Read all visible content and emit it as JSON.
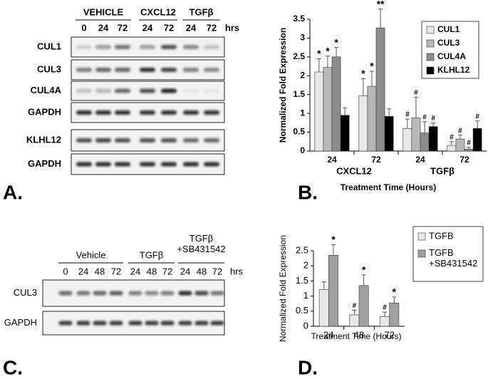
{
  "panel_labels": [
    "A.",
    "B.",
    "C.",
    "D."
  ],
  "blot_a": {
    "columns": [
      {
        "label": "VEHICLE",
        "lanes": [
          "0",
          "24",
          "72"
        ]
      },
      {
        "label": "CXCL12",
        "lanes": [
          "24",
          "72"
        ]
      },
      {
        "label": "TGFβ",
        "lanes": [
          "24",
          "72"
        ]
      }
    ],
    "unit": "hrs",
    "rows": [
      "CUL1",
      "CUL3",
      "CUL4A",
      "GAPDH",
      "KLHL12",
      "GAPDH"
    ]
  },
  "blot_c": {
    "columns": [
      {
        "label": "Vehicle",
        "lanes": [
          "0",
          "24",
          "48",
          "72"
        ]
      },
      {
        "label": "TGFβ",
        "lanes": [
          "24",
          "48",
          "72"
        ]
      },
      {
        "label": "TGFβ +SB431542",
        "lanes": [
          "24",
          "48",
          "72"
        ]
      }
    ],
    "unit": "hrs",
    "rows": [
      "CUL3",
      "GAPDH"
    ]
  },
  "chart_data": [
    {
      "type": "bar",
      "ylabel": "Normalized Fold Expression",
      "xlabel": "Treatment Time (Hours)",
      "categories": [
        "24",
        "72",
        "24",
        "72"
      ],
      "group_labels": [
        "CXCL12",
        "TGFβ"
      ],
      "ylim": [
        0,
        3.5
      ],
      "yticks": [
        0,
        0.5,
        1,
        1.5,
        2,
        2.5,
        3,
        3.5
      ],
      "grid": false,
      "legend": "upper right",
      "series": [
        {
          "name": "CUL1",
          "color": "#e8e8e8",
          "values": [
            2.1,
            1.47,
            0.6,
            0.15
          ],
          "errors": [
            0.35,
            0.45,
            0.25,
            0.1
          ],
          "annotations": [
            "*",
            "*",
            "#",
            "#"
          ]
        },
        {
          "name": "CUL3",
          "color": "#b8b8b8",
          "values": [
            2.22,
            1.72,
            0.88,
            0.32
          ],
          "errors": [
            0.3,
            0.4,
            0.55,
            0.1
          ],
          "annotations": [
            "*",
            "*",
            "#",
            "#"
          ]
        },
        {
          "name": "CUL4A",
          "color": "#8c8c8c",
          "values": [
            2.5,
            3.27,
            0.48,
            0.05
          ],
          "errors": [
            0.25,
            0.5,
            0.3,
            0.05
          ],
          "annotations": [
            "*",
            "**",
            "#",
            "#"
          ]
        },
        {
          "name": "KLHL12",
          "color": "#000000",
          "values": [
            0.95,
            0.92,
            0.65,
            0.6
          ],
          "errors": [
            0.2,
            0.2,
            0.1,
            0.2
          ],
          "annotations": [
            null,
            null,
            "#",
            "#"
          ]
        }
      ]
    },
    {
      "type": "bar",
      "ylabel": "Normalized Fold Expression",
      "xlabel": "Treatment Time (Hours)",
      "categories": [
        "24",
        "48",
        "72"
      ],
      "ylim": [
        0,
        2.5
      ],
      "yticks": [
        0,
        0.5,
        1,
        1.5,
        2,
        2.5
      ],
      "grid": false,
      "legend": "outside right",
      "series": [
        {
          "name": "TGFB",
          "color": "#e8e8e8",
          "values": [
            1.22,
            0.38,
            0.32
          ],
          "errors": [
            0.25,
            0.15,
            0.15
          ],
          "annotations": [
            null,
            "#",
            "#"
          ]
        },
        {
          "name": "TGFB +SB431542",
          "color": "#a0a0a0",
          "values": [
            2.35,
            1.35,
            0.77
          ],
          "errors": [
            0.35,
            0.35,
            0.2
          ],
          "annotations": [
            "*",
            "*",
            "*"
          ]
        }
      ]
    }
  ]
}
